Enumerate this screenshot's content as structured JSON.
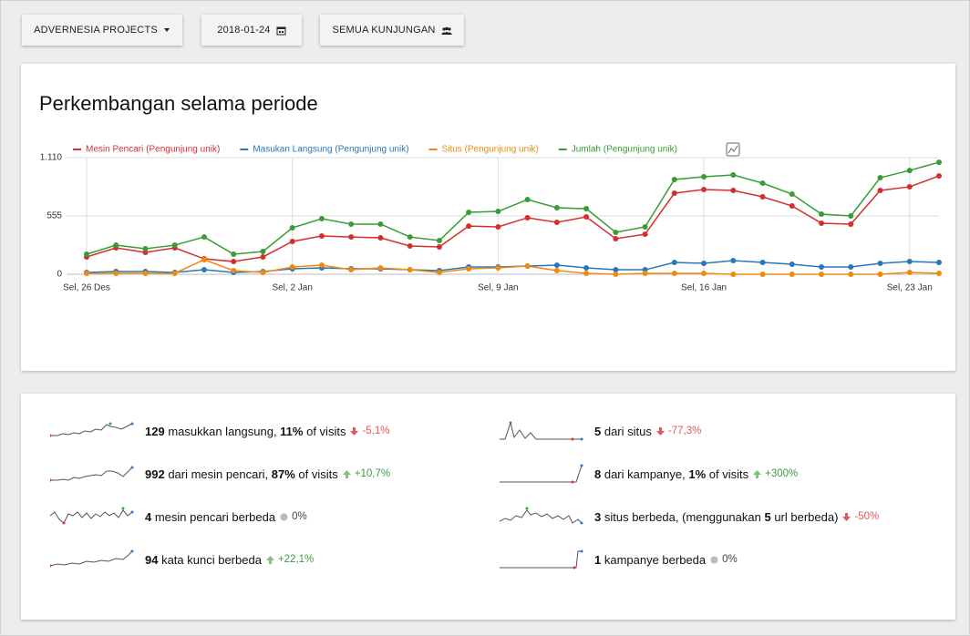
{
  "toolbar": {
    "site": "ADVERNESIA PROJECTS",
    "date": "2018-01-24",
    "segment": "SEMUA KUNJUNGAN"
  },
  "chart_data": {
    "type": "line",
    "title": "Perkembangan selama periode",
    "categories": [
      "Sel, 26 Des",
      null,
      null,
      null,
      null,
      null,
      null,
      "Sel, 2 Jan",
      null,
      null,
      null,
      null,
      null,
      null,
      "Sel, 9 Jan",
      null,
      null,
      null,
      null,
      null,
      null,
      "Sel, 16 Jan",
      null,
      null,
      null,
      null,
      null,
      null,
      "Sel, 23 Jan",
      null
    ],
    "series": [
      {
        "name": "Mesin Pencari (Pengunjung unik)",
        "color": "#d32f2f",
        "values": [
          165,
          251,
          208,
          251,
          147,
          121,
          165,
          312,
          364,
          355,
          347,
          269,
          260,
          459,
          451,
          538,
          494,
          546,
          338,
          381,
          772,
          806,
          798,
          737,
          650,
          486,
          477,
          798,
          832,
          936
        ]
      },
      {
        "name": "Masukan Langsung (Pengunjung unik)",
        "color": "#2a77b8",
        "values": [
          17,
          26,
          26,
          17,
          43,
          17,
          26,
          52,
          61,
          52,
          52,
          43,
          35,
          69,
          69,
          78,
          87,
          61,
          43,
          43,
          113,
          104,
          130,
          113,
          95,
          69,
          69,
          104,
          121,
          113
        ]
      },
      {
        "name": "Situs (Pengunjung unik)",
        "color": "#f08a10",
        "values": [
          9,
          9,
          9,
          9,
          139,
          35,
          17,
          69,
          87,
          43,
          61,
          43,
          17,
          52,
          61,
          78,
          35,
          9,
          0,
          9,
          9,
          9,
          0,
          0,
          0,
          0,
          0,
          0,
          17,
          9
        ]
      },
      {
        "name": "Jumlah (Pengunjung unik)",
        "color": "#3a9c35",
        "values": [
          191,
          277,
          243,
          277,
          355,
          191,
          217,
          442,
          529,
          477,
          477,
          355,
          321,
          590,
          598,
          711,
          633,
          624,
          399,
          451,
          902,
          928,
          945,
          867,
          763,
          572,
          555,
          919,
          988,
          1066
        ]
      }
    ],
    "ylim": [
      0,
      1110
    ],
    "yticks": [
      0,
      555,
      {
        "value": 1110,
        "label": "1.110"
      }
    ],
    "grid": true
  },
  "stats": [
    {
      "parts": [
        {
          "text": "129",
          "bold": true
        },
        {
          "text": " masukkan langsung, "
        },
        {
          "text": "11%",
          "bold": true
        },
        {
          "text": " of visits"
        }
      ],
      "change": "-5,1%",
      "trend": "down"
    },
    {
      "parts": [
        {
          "text": "992",
          "bold": true
        },
        {
          "text": " dari mesin pencari, "
        },
        {
          "text": "87%",
          "bold": true
        },
        {
          "text": " of visits"
        }
      ],
      "change": "+10,7%",
      "trend": "up"
    },
    {
      "parts": [
        {
          "text": "4",
          "bold": true
        },
        {
          "text": " mesin pencari berbeda"
        }
      ],
      "change": "0%",
      "trend": "flat"
    },
    {
      "parts": [
        {
          "text": "94",
          "bold": true
        },
        {
          "text": " kata kunci berbeda"
        }
      ],
      "change": "+22,1%",
      "trend": "up"
    },
    {
      "parts": [
        {
          "text": "5",
          "bold": true
        },
        {
          "text": " dari situs"
        }
      ],
      "change": "-77,3%",
      "trend": "down"
    },
    {
      "parts": [
        {
          "text": "8",
          "bold": true
        },
        {
          "text": " dari kampanye, "
        },
        {
          "text": "1%",
          "bold": true
        },
        {
          "text": " of visits"
        }
      ],
      "change": "+300%",
      "trend": "up"
    },
    {
      "parts": [
        {
          "text": "3",
          "bold": true
        },
        {
          "text": " situs berbeda, (menggunakan "
        },
        {
          "text": "5",
          "bold": true
        },
        {
          "text": " url berbeda)"
        }
      ],
      "change": "-50%",
      "trend": "down"
    },
    {
      "parts": [
        {
          "text": "1",
          "bold": true
        },
        {
          "text": " kampanye berbeda"
        }
      ],
      "change": "0%",
      "trend": "flat"
    }
  ]
}
